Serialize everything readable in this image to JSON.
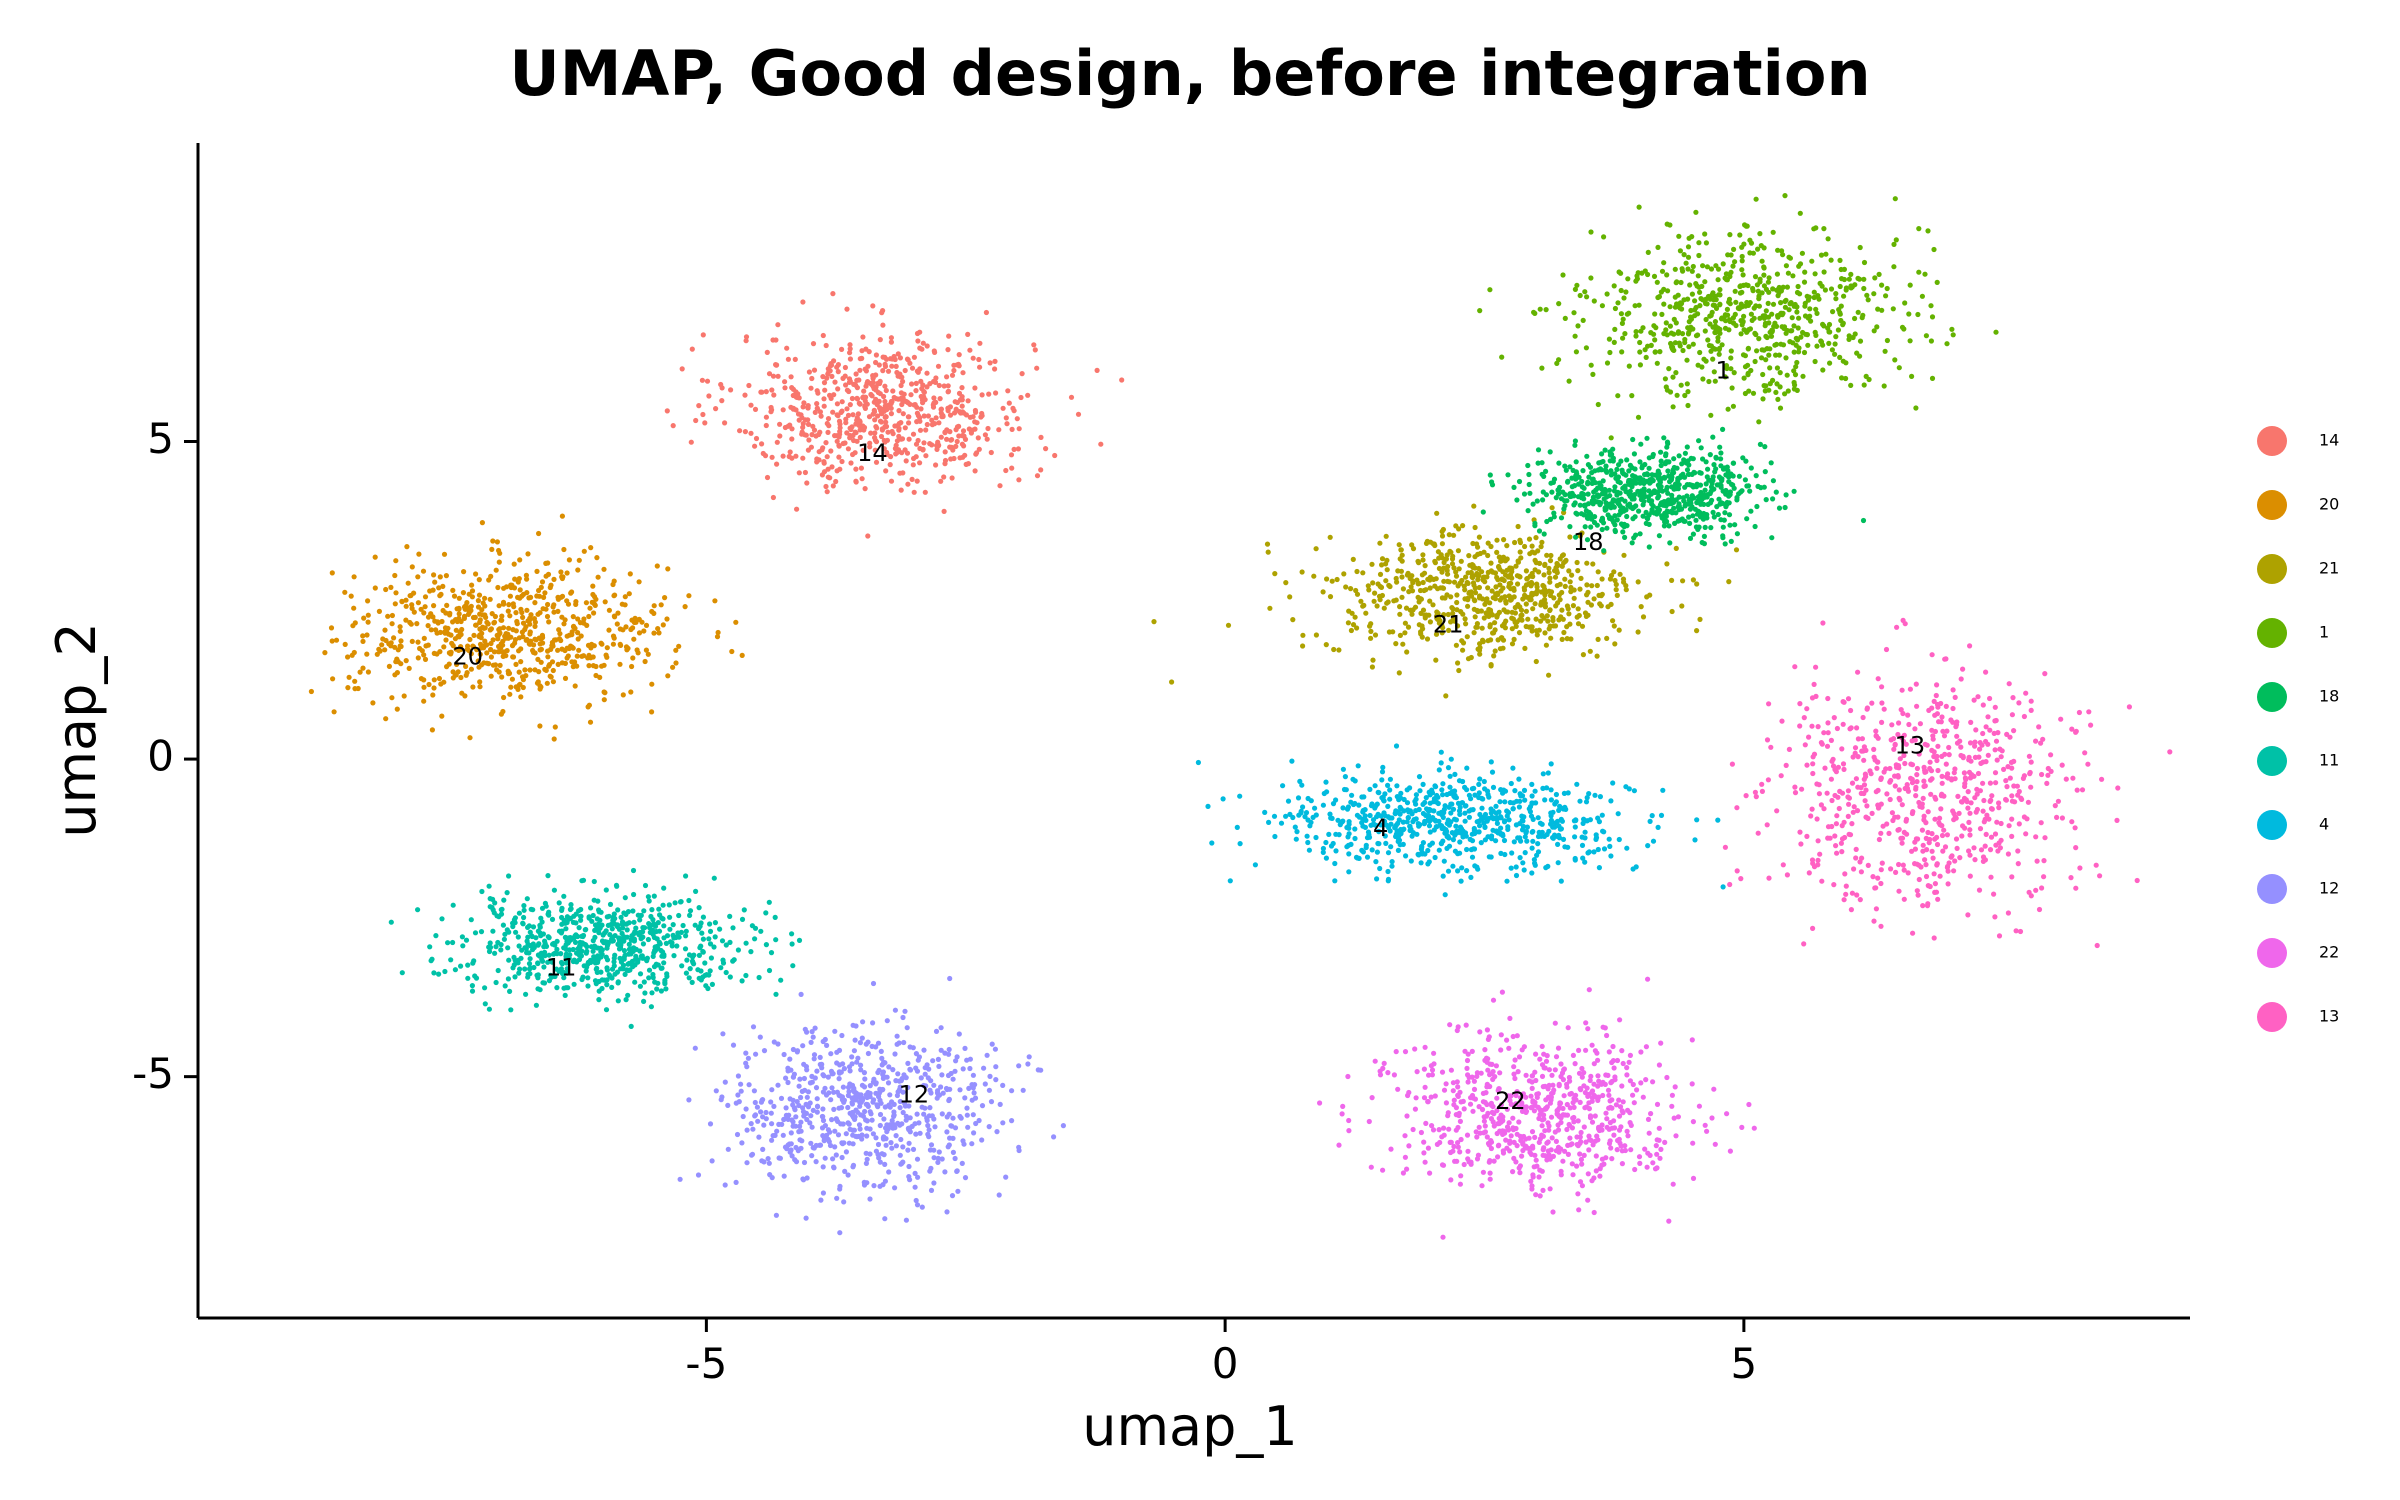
{
  "chart_data": {
    "type": "scatter",
    "title": "UMAP, Good design, before integration",
    "xlabel": "umap_1",
    "ylabel": "umap_2",
    "xlim": [
      -9.9,
      9.3
    ],
    "ylim": [
      -8.8,
      9.7
    ],
    "xticks": [
      -5,
      0,
      5
    ],
    "yticks": [
      -5,
      0,
      5
    ],
    "grid": false,
    "legend_position": "right",
    "series": [
      {
        "name": "14",
        "color": "#F8766D",
        "center": [
          -3.3,
          5.5
        ],
        "spread": [
          1.3,
          1.1
        ],
        "label_pos": [
          -3.4,
          4.8
        ]
      },
      {
        "name": "20",
        "color": "#DB8E00",
        "center": [
          -6.9,
          2.0
        ],
        "spread": [
          1.4,
          1.0
        ],
        "label_pos": [
          -7.3,
          1.6
        ]
      },
      {
        "name": "21",
        "color": "#AEA200",
        "center": [
          2.5,
          2.6
        ],
        "spread": [
          1.4,
          0.9
        ],
        "label_pos": [
          2.15,
          2.1
        ]
      },
      {
        "name": "1",
        "color": "#64B200",
        "center": [
          5.0,
          7.0
        ],
        "spread": [
          1.4,
          1.2
        ],
        "label_pos": [
          4.8,
          6.1
        ]
      },
      {
        "name": "18",
        "color": "#00BD5C",
        "center": [
          4.1,
          4.2
        ],
        "spread": [
          1.0,
          0.6
        ],
        "label_pos": [
          3.5,
          3.4
        ]
      },
      {
        "name": "11",
        "color": "#00C1A7",
        "center": [
          -6.0,
          -2.9
        ],
        "spread": [
          1.3,
          0.7
        ],
        "label_pos": [
          -6.4,
          -3.3
        ]
      },
      {
        "name": "4",
        "color": "#00BADE",
        "center": [
          2.2,
          -1.0
        ],
        "spread": [
          1.5,
          0.7
        ],
        "label_pos": [
          1.5,
          -1.1
        ]
      },
      {
        "name": "12",
        "color": "#9590FF",
        "center": [
          -3.5,
          -5.5
        ],
        "spread": [
          1.2,
          1.2
        ],
        "label_pos": [
          -3.0,
          -5.3
        ]
      },
      {
        "name": "22",
        "color": "#EF67EB",
        "center": [
          3.0,
          -5.6
        ],
        "spread": [
          1.3,
          1.1
        ],
        "label_pos": [
          2.75,
          -5.4
        ]
      },
      {
        "name": "13",
        "color": "#FF61C3",
        "center": [
          6.7,
          -0.5
        ],
        "spread": [
          1.4,
          1.6
        ],
        "label_pos": [
          6.6,
          0.2
        ]
      }
    ]
  }
}
